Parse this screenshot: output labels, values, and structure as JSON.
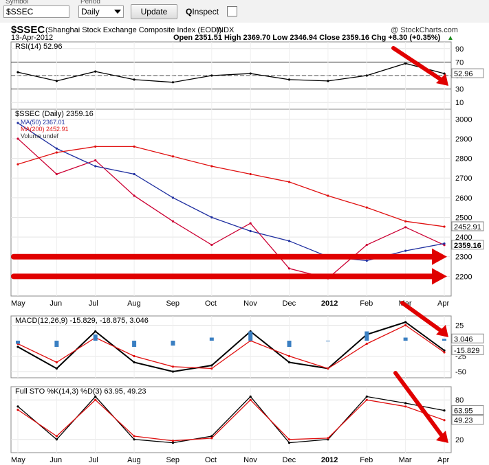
{
  "toolbar": {
    "symbol_label": "Symbol",
    "symbol_value": "$SSEC",
    "period_label": "Period",
    "period_value": "Daily",
    "update_label": "Update",
    "inspect_label": "Inspect"
  },
  "header": {
    "title": "$SSEC",
    "subtitle": "(Shanghai Stock Exchange Composite Index (EOD))",
    "exchange": "INDX",
    "source": "@ StockCharts.com",
    "date": "13-Apr-2012",
    "ohlc": "Open 2351.51  High 2369.70  Low 2346.94  Close 2359.16  Chg +8.30 (+0.35%)",
    "ohlc_arrow": "▲"
  },
  "chart_data": [
    {
      "type": "line",
      "panel": "RSI",
      "label": "RSI(14) 52.96",
      "ylim": [
        0,
        100
      ],
      "ticks": [
        90,
        70,
        50,
        30,
        10
      ],
      "reference_lines": [
        70,
        50,
        30
      ],
      "last_value": "52.96",
      "x": [
        "May",
        "Jun",
        "Jul",
        "Aug",
        "Sep",
        "Oct",
        "Nov",
        "Dec",
        "2012",
        "Feb",
        "Mar",
        "Apr"
      ],
      "values": [
        55,
        42,
        56,
        44,
        40,
        50,
        53,
        44,
        42,
        50,
        68,
        52.96
      ]
    },
    {
      "type": "line",
      "panel": "Price",
      "label": "$SSEC (Daily) 2359.16",
      "ylim": [
        2100,
        3050
      ],
      "ticks": [
        3000,
        2900,
        2800,
        2700,
        2600,
        2500,
        2400,
        2300,
        2200
      ],
      "x": [
        "May",
        "Jun",
        "Jul",
        "Aug",
        "Sep",
        "Oct",
        "Nov",
        "Dec",
        "2012",
        "Feb",
        "Mar",
        "Apr"
      ],
      "series": [
        {
          "name": "$SSEC (Daily) 2359.16",
          "values": [
            2900,
            2720,
            2790,
            2610,
            2480,
            2360,
            2470,
            2240,
            2190,
            2360,
            2450,
            2359.16
          ]
        },
        {
          "name": "MA(50) 2367.01",
          "values": [
            2980,
            2850,
            2760,
            2720,
            2600,
            2500,
            2430,
            2380,
            2300,
            2280,
            2330,
            2367.01
          ]
        },
        {
          "name": "MA(200) 2452.91",
          "values": [
            2770,
            2830,
            2860,
            2860,
            2810,
            2760,
            2720,
            2680,
            2610,
            2550,
            2480,
            2452.91
          ]
        }
      ],
      "legend": [
        "MA(50) 2367.01",
        "MA(200) 2452.91",
        "Volume undef"
      ],
      "last_labels": [
        "2452.91",
        "2359.16"
      ],
      "annotations": [
        "arrow at 2300",
        "arrow at 2200"
      ]
    },
    {
      "type": "line",
      "panel": "MACD",
      "label": "MACD(12,26,9) -15.829, -18.875, 3.046",
      "ylim": [
        -60,
        40
      ],
      "ticks": [
        25,
        -25,
        -50
      ],
      "x": [
        "May",
        "Jun",
        "Jul",
        "Aug",
        "Sep",
        "Oct",
        "Nov",
        "Dec",
        "2012",
        "Feb",
        "Mar",
        "Apr"
      ],
      "series": [
        {
          "name": "MACD",
          "values": [
            -10,
            -45,
            15,
            -35,
            -50,
            -40,
            15,
            -35,
            -45,
            10,
            30,
            -15.829
          ]
        },
        {
          "name": "Signal",
          "values": [
            -5,
            -35,
            5,
            -25,
            -42,
            -45,
            0,
            -25,
            -45,
            -5,
            25,
            -18.875
          ]
        },
        {
          "name": "Histogram",
          "values": [
            -5,
            -10,
            10,
            -10,
            -8,
            5,
            15,
            -10,
            0,
            15,
            5,
            3.046
          ]
        }
      ],
      "last_labels": [
        "3.046",
        "-15.829"
      ]
    },
    {
      "type": "line",
      "panel": "Full STO",
      "label": "Full STO %K(14,3) %D(3) 63.95, 49.23",
      "ylim": [
        0,
        100
      ],
      "ticks": [
        80,
        20
      ],
      "x": [
        "May",
        "Jun",
        "Jul",
        "Aug",
        "Sep",
        "Oct",
        "Nov",
        "Dec",
        "2012",
        "Feb",
        "Mar",
        "Apr"
      ],
      "series": [
        {
          "name": "%K",
          "values": [
            70,
            20,
            85,
            20,
            15,
            25,
            85,
            15,
            20,
            85,
            75,
            63.95
          ]
        },
        {
          "name": "%D",
          "values": [
            65,
            25,
            80,
            25,
            18,
            22,
            80,
            20,
            22,
            80,
            70,
            49.23
          ]
        }
      ],
      "last_labels": [
        "63.95",
        "49.23"
      ]
    }
  ],
  "colors": {
    "price_up": "#000000",
    "price_down": "#cc0033",
    "ma50": "#1f2fa0",
    "ma200": "#e01010",
    "macd": "#000000",
    "signal": "#e01010",
    "hist": "#3a7fc2",
    "arrow": "#e00000"
  }
}
